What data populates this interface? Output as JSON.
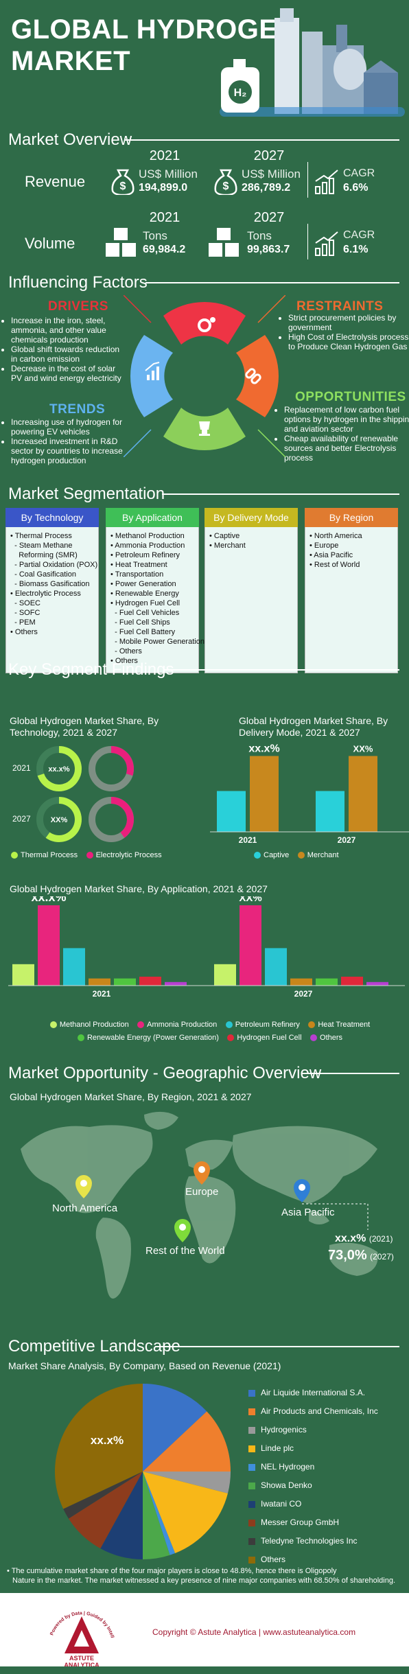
{
  "header": {
    "title_line1": "GLOBAL HYDROGEN",
    "title_line2": "MARKET"
  },
  "overview": {
    "title": "Market Overview",
    "revenue": {
      "label": "Revenue",
      "y1": "2021",
      "y2": "2027",
      "unit": "US$ Million",
      "v1": "194,899.0",
      "v2": "286,789.2",
      "cagr_label": "CAGR",
      "cagr": "6.6%"
    },
    "volume": {
      "label": "Volume",
      "y1": "2021",
      "y2": "2027",
      "unit": "Tons",
      "v1": "69,984.2",
      "v2": "99,863.7",
      "cagr_label": "CAGR",
      "cagr": "6.1%"
    }
  },
  "factors": {
    "title": "Influencing Factors",
    "drivers": {
      "title": "DRIVERS",
      "items": [
        "Increase in the iron, steel, ammonia, and other value chemicals production",
        "Global shift towards reduction in carbon emission",
        "Decrease in the cost of solar PV and wind energy electricity"
      ]
    },
    "restraints": {
      "title": "RESTRAINTS",
      "items": [
        "Strict procurement policies by government",
        "High Cost of Electrolysis process to Produce Clean Hydrogen Gas"
      ]
    },
    "trends": {
      "title": "TRENDS",
      "items": [
        "Increasing use of hydrogen for powering EV vehicles",
        "Increased investment in R&D sector by countries to increase hydrogen production"
      ]
    },
    "opportunities": {
      "title": "OPPORTUNITIES",
      "items": [
        "Replacement of low carbon fuel options by hydrogen in the shipping and aviation sector",
        "Cheap availability of renewable sources and better Electrolysis process"
      ]
    }
  },
  "segmentation": {
    "title": "Market Segmentation",
    "technology": {
      "head": "By Technology",
      "lines": [
        "• Thermal Process",
        "  - Steam Methane",
        "    Reforming (SMR)",
        "  - Partial Oxidation (POX)",
        "  - Coal Gasification",
        "  - Biomass Gasification",
        "• Electrolytic Process",
        "  - SOEC",
        "  - SOFC",
        "  - PEM",
        "• Others"
      ]
    },
    "application": {
      "head": "By Application",
      "lines": [
        "• Methanol Production",
        "• Ammonia Production",
        "• Petroleum Refinery",
        "• Heat Treatment",
        "• Transportation",
        "• Power Generation",
        "• Renewable Energy",
        "• Hydrogen Fuel Cell",
        "  - Fuel Cell Vehicles",
        "  - Fuel Cell Ships",
        "  - Fuel Cell Battery",
        "  - Mobile Power Generation",
        "  - Others",
        "• Others"
      ]
    },
    "delivery": {
      "head": "By Delivery Mode",
      "lines": [
        "• Captive",
        "• Merchant"
      ]
    },
    "region": {
      "head": "By Region",
      "lines": [
        "• North America",
        "• Europe",
        "• Asia Pacific",
        "• Rest of World"
      ]
    }
  },
  "findings": {
    "title": "Key Segment Findings",
    "tech_chart_title": "Global Hydrogen Market Share, By Technology, 2021 & 2027",
    "tech_year1": "2021",
    "tech_year2": "2027",
    "tech_label1": "xx.x%",
    "tech_label2": "XX%",
    "tech_legend": [
      "Thermal Process",
      "Electrolytic Process"
    ],
    "delivery_chart_title": "Global Hydrogen Market Share, By Delivery Mode, 2021 & 2027",
    "delivery_label1": "xx.x%",
    "delivery_label2": "XX%",
    "delivery_legend": [
      "Captive",
      "Merchant"
    ],
    "app_chart_title": "Global Hydrogen Market Share, By Application, 2021 & 2027",
    "app_label1": "xx.x%",
    "app_label2": "XX%",
    "app_legend": [
      "Methanol Production",
      "Ammonia Production",
      "Petroleum Refinery",
      "Heat Treatment",
      "Renewable Energy (Power Generation)",
      "Hydrogen Fuel Cell",
      "Others"
    ]
  },
  "chart_data": [
    {
      "type": "pie",
      "title": "Global Hydrogen Market Share, By Technology, 2021 & 2027",
      "categories": [
        "2021",
        "2027"
      ],
      "series": [
        {
          "name": "Thermal Process",
          "values": [
            70,
            60
          ]
        },
        {
          "name": "Electrolytic Process",
          "values": [
            30,
            40
          ]
        }
      ]
    },
    {
      "type": "bar",
      "title": "Global Hydrogen Market Share, By Delivery Mode, 2021 & 2027",
      "categories": [
        "2021",
        "2027"
      ],
      "series": [
        {
          "name": "Captive",
          "values": [
            35,
            35
          ]
        },
        {
          "name": "Merchant",
          "values": [
            65,
            65
          ]
        }
      ]
    },
    {
      "type": "bar",
      "title": "Global Hydrogen Market Share, By Application, 2021 & 2027",
      "categories": [
        "2021",
        "2027"
      ],
      "series": [
        {
          "name": "Methanol Production",
          "values": [
            12,
            12
          ]
        },
        {
          "name": "Ammonia Production",
          "values": [
            45,
            45
          ]
        },
        {
          "name": "Petroleum Refinery",
          "values": [
            21,
            21
          ]
        },
        {
          "name": "Heat Treatment",
          "values": [
            4,
            4
          ]
        },
        {
          "name": "Renewable Energy (Power Generation)",
          "values": [
            4,
            4
          ]
        },
        {
          "name": "Hydrogen Fuel Cell",
          "values": [
            5,
            5
          ]
        },
        {
          "name": "Others",
          "values": [
            2,
            2
          ]
        }
      ]
    },
    {
      "type": "pie",
      "title": "Market Share Analysis, By Company, Based on Revenue (2021)",
      "categories": [
        "Air Liquide International S.A.",
        "Air Products and Chemicals, Inc",
        "Hydrogenics",
        "Linde plc",
        "NEL Hydrogen",
        "Showa Denko",
        "Iwatani CO",
        "Messer Group GmbH",
        "Teledyne Technologies Inc",
        "Others"
      ],
      "values": [
        13,
        12,
        4,
        15,
        1,
        5,
        8,
        8,
        2,
        32
      ]
    }
  ],
  "colors": {
    "thermal": "#b8f24a",
    "electrolytic": "#ea1f7c",
    "captive": "#29d0d9",
    "merchant": "#c8881e",
    "methanol": "#c6f26a",
    "ammonia": "#e8257d",
    "petroleum": "#29c5d2",
    "heat": "#c8861b",
    "renewable": "#50c540",
    "fuelcell": "#e0283a",
    "others": "#b73fd0"
  },
  "geo": {
    "title": "Market Opportunity - Geographic Overview",
    "subtitle": "Global Hydrogen Market Share, By Region, 2021 & 2027",
    "regions": [
      "North America",
      "Europe",
      "Asia Pacific",
      "Rest of the World"
    ],
    "val1": "xx.x%",
    "val1_year": "(2021)",
    "val2": "73,0%",
    "val2_year": "(2027)"
  },
  "competitive": {
    "title": "Competitive Landscape",
    "subtitle": "Market Share Analysis, By Company, Based on Revenue (2021)",
    "pie_label": "xx.x%",
    "companies": [
      "Air Liquide International S.A.",
      "Air Products and Chemicals, Inc",
      "Hydrogenics",
      "Linde plc",
      "NEL Hydrogen",
      "Showa Denko",
      "Iwatani CO",
      "Messer Group GmbH",
      "Teledyne Technologies Inc",
      "Others"
    ],
    "colors": [
      "#3a73c8",
      "#ef7f2d",
      "#9a9a9a",
      "#f8b718",
      "#3f8fdc",
      "#4ca84a",
      "#1d3f74",
      "#8d3c1d",
      "#3c3c3c",
      "#8e6a08"
    ],
    "note1": "• The cumulative market share of the four major players is close to 48.8%, hence there is Oligopoly",
    "note2": "Nature in the market. The market witnessed a key presence of nine major companies with 68.50% of shareholding."
  },
  "footer": {
    "copyright": "Copyright © Astute Analytica  |  www.astuteanalytica.com",
    "logo_text": "ASTUTE",
    "logo_text2": "ANALYTICA",
    "tagline": "Powered by Data | Guided by Intelligence"
  }
}
